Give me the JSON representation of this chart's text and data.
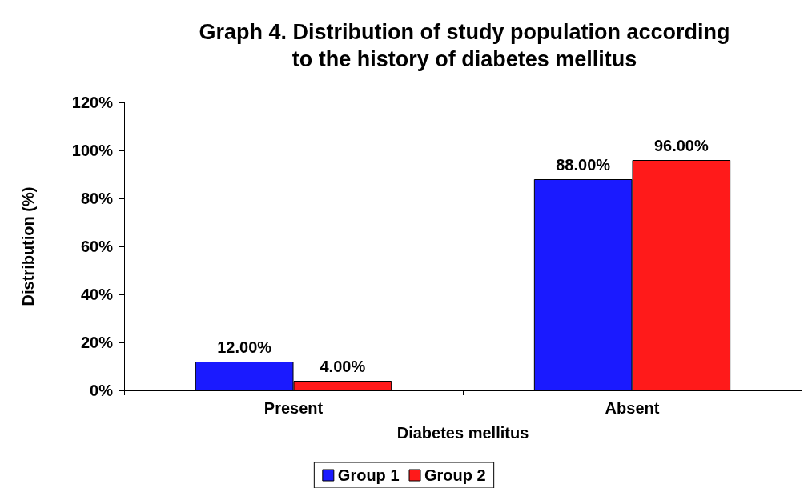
{
  "chart_data": {
    "type": "bar",
    "title": "Graph 4. Distribution of study population according\nto the history of diabetes mellitus",
    "xlabel": "Diabetes mellitus",
    "ylabel": "Distribution (%)",
    "categories": [
      "Present",
      "Absent"
    ],
    "series": [
      {
        "name": "Group 1",
        "color": "#1a1aff",
        "values": [
          12,
          88
        ],
        "value_labels": [
          "12.00%",
          "88.00%"
        ]
      },
      {
        "name": "Group 2",
        "color": "#ff1a1a",
        "values": [
          4,
          96
        ],
        "value_labels": [
          "4.00%",
          "96.00%"
        ]
      }
    ],
    "ylim": [
      0,
      120
    ],
    "yticks": [
      {
        "value": 0,
        "label": "0%"
      },
      {
        "value": 20,
        "label": "20%"
      },
      {
        "value": 40,
        "label": "40%"
      },
      {
        "value": 60,
        "label": "60%"
      },
      {
        "value": 80,
        "label": "80%"
      },
      {
        "value": 100,
        "label": "100%"
      },
      {
        "value": 120,
        "label": "120%"
      }
    ],
    "grid": false,
    "legend": "bottom"
  }
}
